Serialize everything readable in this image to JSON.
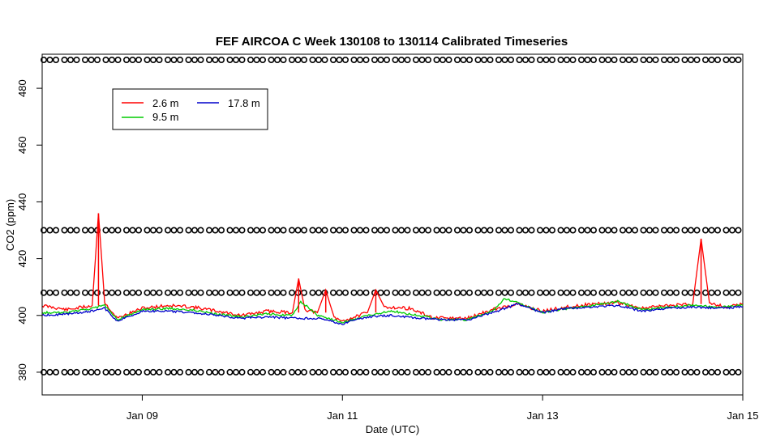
{
  "chart_data": {
    "type": "line",
    "title": "FEF AIRCOA C  Week 130108 to 130114  Calibrated Timeseries",
    "xlabel": "Date (UTC)",
    "ylabel": "CO2 (ppm)",
    "xlim": [
      "2013-01-08T00:00",
      "2013-01-15T00:00"
    ],
    "ylim": [
      372,
      492
    ],
    "x_tick_labels": [
      "Jan 09",
      "Jan 11",
      "Jan 13",
      "Jan 15"
    ],
    "y_tick_labels": [
      "380",
      "400",
      "420",
      "440",
      "460",
      "480"
    ],
    "legend_placement": "top-left",
    "grid": false,
    "series": [
      {
        "name": "2.6 m",
        "color": "#ff0000",
        "values": [
          [
            "2013-01-08T00:00",
            403.5
          ],
          [
            "2013-01-08T06:00",
            402.0
          ],
          [
            "2013-01-08T12:00",
            403.5
          ],
          [
            "2013-01-08T13:30",
            436.0
          ],
          [
            "2013-01-08T15:00",
            404.5
          ],
          [
            "2013-01-08T18:00",
            399.0
          ],
          [
            "2013-01-09T00:00",
            402.5
          ],
          [
            "2013-01-09T06:00",
            403.5
          ],
          [
            "2013-01-09T12:00",
            403.0
          ],
          [
            "2013-01-09T18:00",
            401.5
          ],
          [
            "2013-01-10T00:00",
            400.0
          ],
          [
            "2013-01-10T06:00",
            401.5
          ],
          [
            "2013-01-10T12:00",
            401.0
          ],
          [
            "2013-01-10T13:30",
            413.0
          ],
          [
            "2013-01-10T15:00",
            402.0
          ],
          [
            "2013-01-10T18:00",
            401.0
          ],
          [
            "2013-01-10T20:00",
            409.0
          ],
          [
            "2013-01-10T22:00",
            399.0
          ],
          [
            "2013-01-11T00:00",
            398.0
          ],
          [
            "2013-01-11T06:00",
            401.0
          ],
          [
            "2013-01-11T08:00",
            409.0
          ],
          [
            "2013-01-11T10:00",
            403.0
          ],
          [
            "2013-01-11T16:00",
            402.5
          ],
          [
            "2013-01-11T22:00",
            399.0
          ],
          [
            "2013-01-12T06:00",
            399.0
          ],
          [
            "2013-01-12T12:00",
            402.0
          ],
          [
            "2013-01-12T18:00",
            404.0
          ],
          [
            "2013-01-13T00:00",
            401.5
          ],
          [
            "2013-01-13T06:00",
            403.0
          ],
          [
            "2013-01-13T12:00",
            404.0
          ],
          [
            "2013-01-13T18:00",
            404.5
          ],
          [
            "2013-01-14T00:00",
            402.5
          ],
          [
            "2013-01-14T06:00",
            403.5
          ],
          [
            "2013-01-14T12:00",
            404.0
          ],
          [
            "2013-01-14T14:00",
            427.0
          ],
          [
            "2013-01-14T16:00",
            404.5
          ],
          [
            "2013-01-14T20:00",
            403.0
          ],
          [
            "2013-01-15T00:00",
            404.0
          ]
        ]
      },
      {
        "name": "9.5 m",
        "color": "#00cc00",
        "values": [
          [
            "2013-01-08T00:00",
            401.0
          ],
          [
            "2013-01-08T06:00",
            401.0
          ],
          [
            "2013-01-08T12:00",
            402.5
          ],
          [
            "2013-01-08T15:00",
            403.5
          ],
          [
            "2013-01-08T18:00",
            398.5
          ],
          [
            "2013-01-09T00:00",
            402.0
          ],
          [
            "2013-01-09T06:00",
            402.5
          ],
          [
            "2013-01-09T12:00",
            402.0
          ],
          [
            "2013-01-09T18:00",
            400.5
          ],
          [
            "2013-01-10T00:00",
            399.5
          ],
          [
            "2013-01-10T06:00",
            400.5
          ],
          [
            "2013-01-10T12:00",
            400.0
          ],
          [
            "2013-01-10T14:00",
            405.0
          ],
          [
            "2013-01-10T18:00",
            400.0
          ],
          [
            "2013-01-11T00:00",
            397.5
          ],
          [
            "2013-01-11T06:00",
            400.0
          ],
          [
            "2013-01-11T12:00",
            401.5
          ],
          [
            "2013-01-11T18:00",
            400.0
          ],
          [
            "2013-01-12T00:00",
            398.5
          ],
          [
            "2013-01-12T06:00",
            398.5
          ],
          [
            "2013-01-12T12:00",
            401.5
          ],
          [
            "2013-01-12T15:00",
            406.0
          ],
          [
            "2013-01-12T18:00",
            404.5
          ],
          [
            "2013-01-13T00:00",
            401.0
          ],
          [
            "2013-01-13T06:00",
            402.5
          ],
          [
            "2013-01-13T12:00",
            403.5
          ],
          [
            "2013-01-13T18:00",
            405.0
          ],
          [
            "2013-01-14T00:00",
            402.0
          ],
          [
            "2013-01-14T06:00",
            403.0
          ],
          [
            "2013-01-14T12:00",
            403.5
          ],
          [
            "2013-01-14T18:00",
            403.0
          ],
          [
            "2013-01-15T00:00",
            403.5
          ]
        ]
      },
      {
        "name": "17.8 m",
        "color": "#0000cc",
        "values": [
          [
            "2013-01-08T00:00",
            400.0
          ],
          [
            "2013-01-08T06:00",
            400.5
          ],
          [
            "2013-01-08T12:00",
            401.5
          ],
          [
            "2013-01-08T15:00",
            402.5
          ],
          [
            "2013-01-08T18:00",
            398.0
          ],
          [
            "2013-01-09T00:00",
            401.5
          ],
          [
            "2013-01-09T06:00",
            401.5
          ],
          [
            "2013-01-09T12:00",
            401.0
          ],
          [
            "2013-01-09T18:00",
            400.0
          ],
          [
            "2013-01-10T00:00",
            399.0
          ],
          [
            "2013-01-10T06:00",
            399.5
          ],
          [
            "2013-01-10T12:00",
            399.0
          ],
          [
            "2013-01-10T18:00",
            399.0
          ],
          [
            "2013-01-11T00:00",
            397.0
          ],
          [
            "2013-01-11T06:00",
            399.5
          ],
          [
            "2013-01-11T12:00",
            400.0
          ],
          [
            "2013-01-11T18:00",
            399.0
          ],
          [
            "2013-01-12T00:00",
            398.5
          ],
          [
            "2013-01-12T06:00",
            398.5
          ],
          [
            "2013-01-12T12:00",
            401.0
          ],
          [
            "2013-01-12T18:00",
            404.0
          ],
          [
            "2013-01-13T00:00",
            401.0
          ],
          [
            "2013-01-13T06:00",
            402.5
          ],
          [
            "2013-01-13T12:00",
            403.0
          ],
          [
            "2013-01-13T18:00",
            403.5
          ],
          [
            "2013-01-14T00:00",
            401.5
          ],
          [
            "2013-01-14T06:00",
            402.5
          ],
          [
            "2013-01-14T12:00",
            403.0
          ],
          [
            "2013-01-14T18:00",
            402.5
          ],
          [
            "2013-01-15T00:00",
            403.0
          ]
        ]
      }
    ],
    "calibration_marker_levels": [
      380,
      408,
      430,
      490
    ],
    "calibration_marker_symbol": "o"
  }
}
